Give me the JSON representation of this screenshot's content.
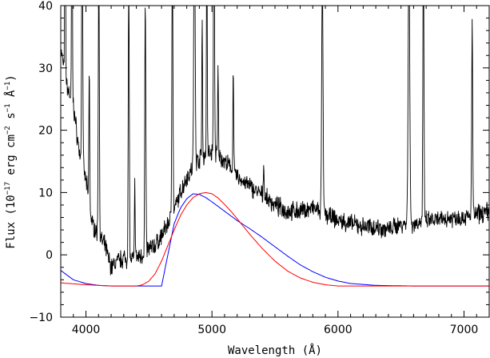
{
  "chart_data": {
    "type": "line",
    "title": "",
    "xlabel": "Wavelength (Å)",
    "ylabel_parts": {
      "p1": "Flux (10",
      "e1": "−17",
      "p2": " erg cm",
      "e2": "−2",
      "p3": " s",
      "e3": "−1",
      "p4": " Å",
      "e4": "−1",
      "p5": ")"
    },
    "xlim": [
      3800,
      7200
    ],
    "ylim": [
      -10,
      40
    ],
    "xticks": [
      4000,
      5000,
      6000,
      7000
    ],
    "yticks": [
      -10,
      0,
      10,
      20,
      30,
      40
    ],
    "grid": false,
    "series": [
      {
        "color": "#000000",
        "continuum": [
          [
            3800,
            33
          ],
          [
            3850,
            27
          ],
          [
            3900,
            24
          ],
          [
            3950,
            16
          ],
          [
            4000,
            12
          ],
          [
            4050,
            5
          ],
          [
            4100,
            3
          ],
          [
            4150,
            1.5
          ],
          [
            4200,
            -2
          ],
          [
            4250,
            -1
          ],
          [
            4300,
            -0.5
          ],
          [
            4350,
            -1
          ],
          [
            4400,
            -0.5
          ],
          [
            4450,
            0
          ],
          [
            4500,
            1
          ],
          [
            4550,
            1.5
          ],
          [
            4600,
            3
          ],
          [
            4650,
            5
          ],
          [
            4700,
            7
          ],
          [
            4750,
            10
          ],
          [
            4800,
            12.5
          ],
          [
            4850,
            14
          ],
          [
            4900,
            15.5
          ],
          [
            4950,
            16
          ],
          [
            5000,
            16.5
          ],
          [
            5050,
            16
          ],
          [
            5100,
            15
          ],
          [
            5150,
            14
          ],
          [
            5200,
            12.5
          ],
          [
            5300,
            11
          ],
          [
            5400,
            9.5
          ],
          [
            5500,
            8
          ],
          [
            5600,
            7
          ],
          [
            5700,
            7
          ],
          [
            5800,
            7.5
          ],
          [
            5900,
            6.5
          ],
          [
            6000,
            5.5
          ],
          [
            6100,
            5
          ],
          [
            6200,
            4.5
          ],
          [
            6300,
            4.5
          ],
          [
            6400,
            4
          ],
          [
            6500,
            5
          ],
          [
            6600,
            5
          ],
          [
            6700,
            5.5
          ],
          [
            6800,
            5.5
          ],
          [
            6900,
            6
          ],
          [
            7000,
            6
          ],
          [
            7100,
            6.5
          ],
          [
            7200,
            7
          ]
        ],
        "emission_lines": [
          [
            3835,
            45,
            3
          ],
          [
            3889,
            45,
            3
          ],
          [
            3970,
            45,
            4
          ],
          [
            4026,
            22,
            3
          ],
          [
            4102,
            45,
            4
          ],
          [
            4340,
            45,
            4
          ],
          [
            4388,
            12,
            3
          ],
          [
            4471,
            40,
            4
          ],
          [
            4686,
            45,
            4
          ],
          [
            4861,
            45,
            5
          ],
          [
            4922,
            22,
            3
          ],
          [
            4959,
            38,
            3
          ],
          [
            5016,
            45,
            4
          ],
          [
            5048,
            14,
            3
          ],
          [
            5169,
            17,
            3
          ],
          [
            5411,
            6,
            3
          ],
          [
            5876,
            38,
            5
          ],
          [
            6563,
            45,
            6
          ],
          [
            6678,
            45,
            4
          ],
          [
            7065,
            30,
            4
          ]
        ]
      },
      {
        "color": "#0000ff",
        "points": [
          [
            3800,
            -2.5
          ],
          [
            3900,
            -4
          ],
          [
            4000,
            -4.6
          ],
          [
            4100,
            -4.9
          ],
          [
            4200,
            -5
          ],
          [
            4400,
            -5
          ],
          [
            4600,
            -5
          ],
          [
            4650,
            0
          ],
          [
            4700,
            5
          ],
          [
            4750,
            7.5
          ],
          [
            4800,
            9
          ],
          [
            4850,
            9.8
          ],
          [
            4900,
            9.7
          ],
          [
            4950,
            9.2
          ],
          [
            5000,
            8.5
          ],
          [
            5100,
            7
          ],
          [
            5200,
            5.5
          ],
          [
            5300,
            4.2
          ],
          [
            5400,
            2.8
          ],
          [
            5500,
            1.3
          ],
          [
            5600,
            -0.2
          ],
          [
            5700,
            -1.6
          ],
          [
            5800,
            -2.7
          ],
          [
            5900,
            -3.6
          ],
          [
            6000,
            -4.2
          ],
          [
            6100,
            -4.6
          ],
          [
            6300,
            -4.9
          ],
          [
            6600,
            -5
          ],
          [
            7200,
            -5
          ]
        ]
      },
      {
        "color": "#ff0000",
        "points": [
          [
            3800,
            -4.5
          ],
          [
            4000,
            -4.8
          ],
          [
            4200,
            -5
          ],
          [
            4400,
            -5
          ],
          [
            4450,
            -4.8
          ],
          [
            4500,
            -4.2
          ],
          [
            4550,
            -3
          ],
          [
            4600,
            -1
          ],
          [
            4650,
            1.5
          ],
          [
            4700,
            4
          ],
          [
            4750,
            6.3
          ],
          [
            4800,
            8
          ],
          [
            4850,
            9.2
          ],
          [
            4900,
            9.8
          ],
          [
            4950,
            10
          ],
          [
            5000,
            9.8
          ],
          [
            5050,
            9.1
          ],
          [
            5100,
            8.1
          ],
          [
            5150,
            7
          ],
          [
            5200,
            5.8
          ],
          [
            5300,
            3.3
          ],
          [
            5400,
            1
          ],
          [
            5500,
            -1
          ],
          [
            5600,
            -2.6
          ],
          [
            5700,
            -3.7
          ],
          [
            5800,
            -4.4
          ],
          [
            5900,
            -4.8
          ],
          [
            6000,
            -5
          ],
          [
            7200,
            -5
          ]
        ]
      }
    ]
  }
}
